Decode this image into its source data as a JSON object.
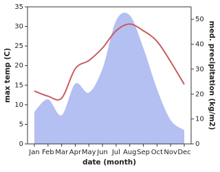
{
  "chart_data": {
    "type": "line-area",
    "x_label": "date (month)",
    "y_label": "max temp (C)",
    "y2_label": "med. precipitation (kg/m2)",
    "categories": [
      "Jan",
      "Feb",
      "Mar",
      "Apr",
      "May",
      "Jun",
      "Jul",
      "Aug",
      "Sep",
      "Oct",
      "Nov",
      "Dec"
    ],
    "series": [
      {
        "name": "precipitation",
        "type": "area",
        "axis": "y2",
        "color": "#b4c0f2",
        "values": [
          12.9,
          17.9,
          11.5,
          24.2,
          20.6,
          30.2,
          49.5,
          51.6,
          38.5,
          22,
          9.6,
          5.5
        ]
      },
      {
        "name": "temperature",
        "type": "line",
        "axis": "y",
        "color": "#c85a5f",
        "values": [
          13.5,
          12.2,
          11.7,
          19.2,
          21.3,
          24.5,
          28.9,
          30.6,
          28.9,
          26.2,
          21,
          15.2
        ]
      }
    ],
    "ylim": [
      0,
      35
    ],
    "yticks": [
      0,
      5,
      10,
      15,
      20,
      25,
      30,
      35
    ],
    "y2lim": [
      0,
      55
    ],
    "y2ticks": [
      0,
      10,
      20,
      30,
      40,
      50
    ]
  }
}
